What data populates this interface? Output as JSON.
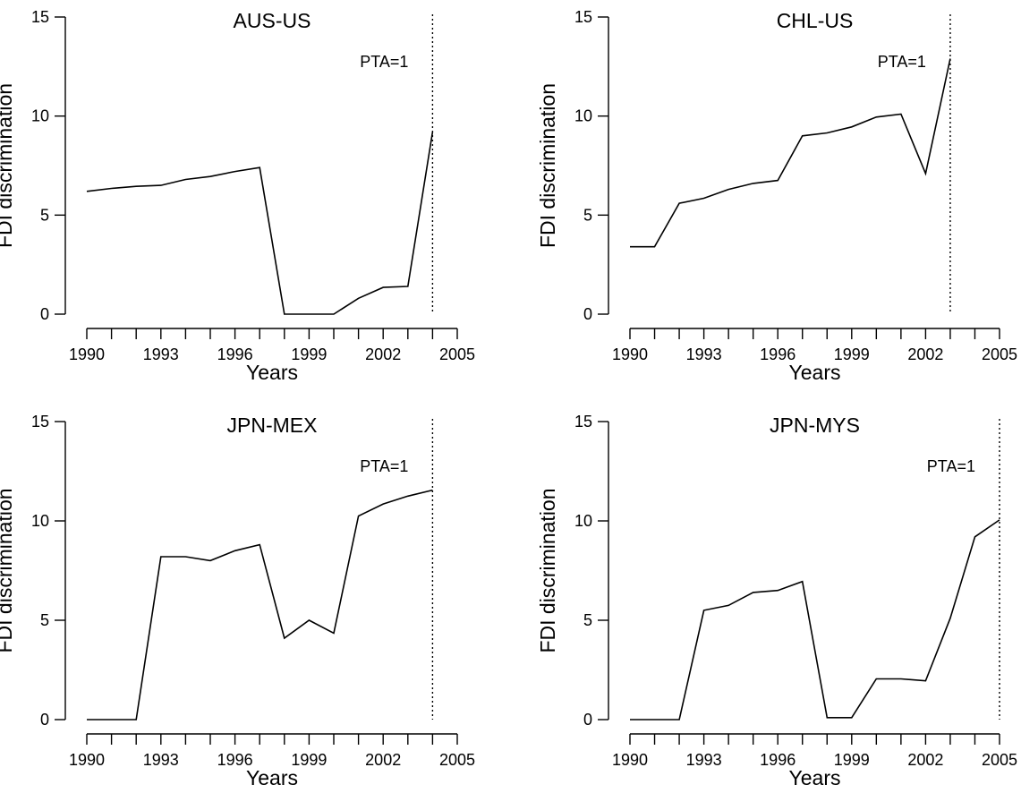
{
  "chart_data": [
    {
      "type": "line",
      "title": "AUS-US",
      "xlabel": "Years",
      "ylabel": "FDI discrimination",
      "xlim": [
        1990,
        2005
      ],
      "ylim": [
        0,
        15
      ],
      "xticks": [
        1990,
        1991,
        1992,
        1993,
        1994,
        1995,
        1996,
        1997,
        1998,
        1999,
        2000,
        2001,
        2002,
        2003,
        2004,
        2005
      ],
      "xtick_labels": [
        "1990",
        "1993",
        "1996",
        "1999",
        "2002",
        "2005"
      ],
      "yticks": [
        0,
        5,
        10,
        15
      ],
      "ytick_labels": [
        "0",
        "5",
        "10",
        "15"
      ],
      "x": [
        1990,
        1991,
        1992,
        1993,
        1994,
        1995,
        1996,
        1997,
        1998,
        1999,
        2000,
        2001,
        2002,
        2003,
        2004
      ],
      "values": [
        6.2,
        6.35,
        6.45,
        6.5,
        6.8,
        6.95,
        7.2,
        7.4,
        0.0,
        0.0,
        0.0,
        0.8,
        1.35,
        1.4,
        9.2
      ],
      "pta_year": 2004,
      "pta_label": "PTA=1"
    },
    {
      "type": "line",
      "title": "CHL-US",
      "xlabel": "Years",
      "ylabel": "FDI discrimination",
      "xlim": [
        1990,
        2005
      ],
      "ylim": [
        0,
        15
      ],
      "xticks": [
        1990,
        1991,
        1992,
        1993,
        1994,
        1995,
        1996,
        1997,
        1998,
        1999,
        2000,
        2001,
        2002,
        2003,
        2004,
        2005
      ],
      "xtick_labels": [
        "1990",
        "1993",
        "1996",
        "1999",
        "2002",
        "2005"
      ],
      "yticks": [
        0,
        5,
        10,
        15
      ],
      "ytick_labels": [
        "0",
        "5",
        "10",
        "15"
      ],
      "x": [
        1990,
        1991,
        1992,
        1993,
        1994,
        1995,
        1996,
        1997,
        1998,
        1999,
        2000,
        2001,
        2002,
        2003
      ],
      "values": [
        3.4,
        3.4,
        5.6,
        5.85,
        6.3,
        6.6,
        6.75,
        9.0,
        9.15,
        9.45,
        9.95,
        10.1,
        7.1,
        12.9
      ],
      "pta_year": 2003,
      "pta_label": "PTA=1"
    },
    {
      "type": "line",
      "title": "JPN-MEX",
      "xlabel": "Years",
      "ylabel": "FDI discrimination",
      "xlim": [
        1990,
        2005
      ],
      "ylim": [
        0,
        15
      ],
      "xticks": [
        1990,
        1991,
        1992,
        1993,
        1994,
        1995,
        1996,
        1997,
        1998,
        1999,
        2000,
        2001,
        2002,
        2003,
        2004,
        2005
      ],
      "xtick_labels": [
        "1990",
        "1993",
        "1996",
        "1999",
        "2002",
        "2005"
      ],
      "yticks": [
        0,
        5,
        10,
        15
      ],
      "ytick_labels": [
        "0",
        "5",
        "10",
        "15"
      ],
      "x": [
        1990,
        1991,
        1992,
        1993,
        1994,
        1995,
        1996,
        1997,
        1998,
        1999,
        2000,
        2001,
        2002,
        2003,
        2004
      ],
      "values": [
        0.0,
        0.0,
        0.0,
        8.2,
        8.2,
        8.0,
        8.5,
        8.8,
        4.1,
        5.0,
        4.35,
        10.25,
        10.85,
        11.25,
        11.55
      ],
      "pta_year": 2004,
      "pta_label": "PTA=1"
    },
    {
      "type": "line",
      "title": "JPN-MYS",
      "xlabel": "Years",
      "ylabel": "FDI discrimination",
      "xlim": [
        1990,
        2005
      ],
      "ylim": [
        0,
        15
      ],
      "xticks": [
        1990,
        1991,
        1992,
        1993,
        1994,
        1995,
        1996,
        1997,
        1998,
        1999,
        2000,
        2001,
        2002,
        2003,
        2004,
        2005
      ],
      "xtick_labels": [
        "1990",
        "1993",
        "1996",
        "1999",
        "2002",
        "2005"
      ],
      "yticks": [
        0,
        5,
        10,
        15
      ],
      "ytick_labels": [
        "0",
        "5",
        "10",
        "15"
      ],
      "x": [
        1990,
        1991,
        1992,
        1993,
        1994,
        1995,
        1996,
        1997,
        1998,
        1999,
        2000,
        2001,
        2002,
        2003,
        2004,
        2005
      ],
      "values": [
        0.0,
        0.0,
        0.0,
        5.5,
        5.75,
        6.4,
        6.5,
        6.95,
        0.1,
        0.1,
        2.05,
        2.05,
        1.95,
        5.1,
        9.2,
        10.05
      ],
      "pta_year": 2005,
      "pta_label": "PTA=1"
    }
  ]
}
